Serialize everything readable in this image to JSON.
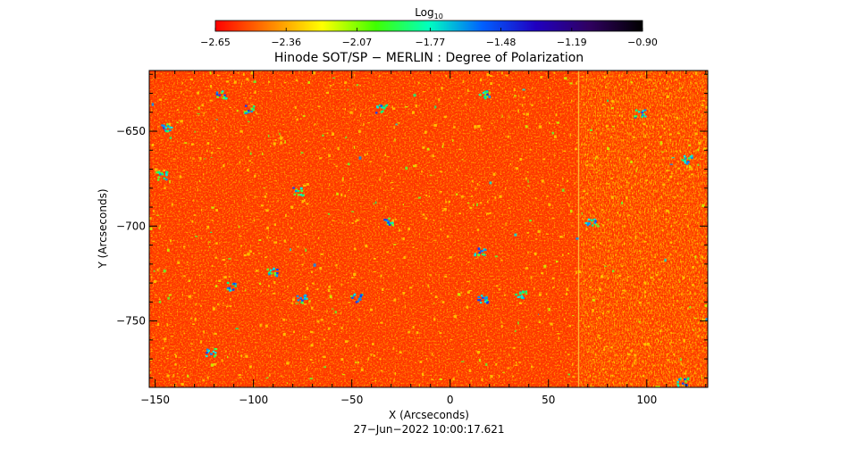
{
  "chart_data": {
    "type": "heatmap",
    "title": "Hinode SOT/SP − MERLIN : Degree of Polarization",
    "xlabel": "X (Arcseconds)",
    "ylabel": "Y (Arcseconds)",
    "footer": "27−Jun−2022 10:00:17.621",
    "xlim": [
      -153,
      131
    ],
    "ylim": [
      -785,
      -618
    ],
    "x_ticks": [
      -150,
      -100,
      -50,
      0,
      50,
      100
    ],
    "x_tick_labels": [
      "−150",
      "−100",
      "−50",
      "0",
      "50",
      "100"
    ],
    "y_ticks": [
      -650,
      -700,
      -750
    ],
    "y_tick_labels": [
      "−650",
      "−700",
      "−750"
    ],
    "colorbar": {
      "label_base": "Log",
      "label_sub": "10",
      "range": [
        -2.65,
        -0.9
      ],
      "ticks": [
        -2.65,
        -2.36,
        -2.07,
        -1.77,
        -1.48,
        -1.19,
        -0.9
      ],
      "tick_labels": [
        "−2.65",
        "−2.36",
        "−2.07",
        "−1.77",
        "−1.48",
        "−1.19",
        "−0.90"
      ],
      "colormap": "rainbow (red → orange → yellow → green → cyan → blue → purple → black)",
      "colormap_stops": [
        "#ff0000",
        "#ff8000",
        "#ffff00",
        "#40ff00",
        "#00ffc0",
        "#0060ff",
        "#2000c0",
        "#300060",
        "#000000"
      ]
    },
    "background_level": -2.6,
    "map_summary": "Mostly red/orange (low polarization) granular field with scattered green/cyan/blue magnetic patches; a vertical seam near X = 65 arcsec and yellow-speckled, noisier region for X > 65."
  }
}
